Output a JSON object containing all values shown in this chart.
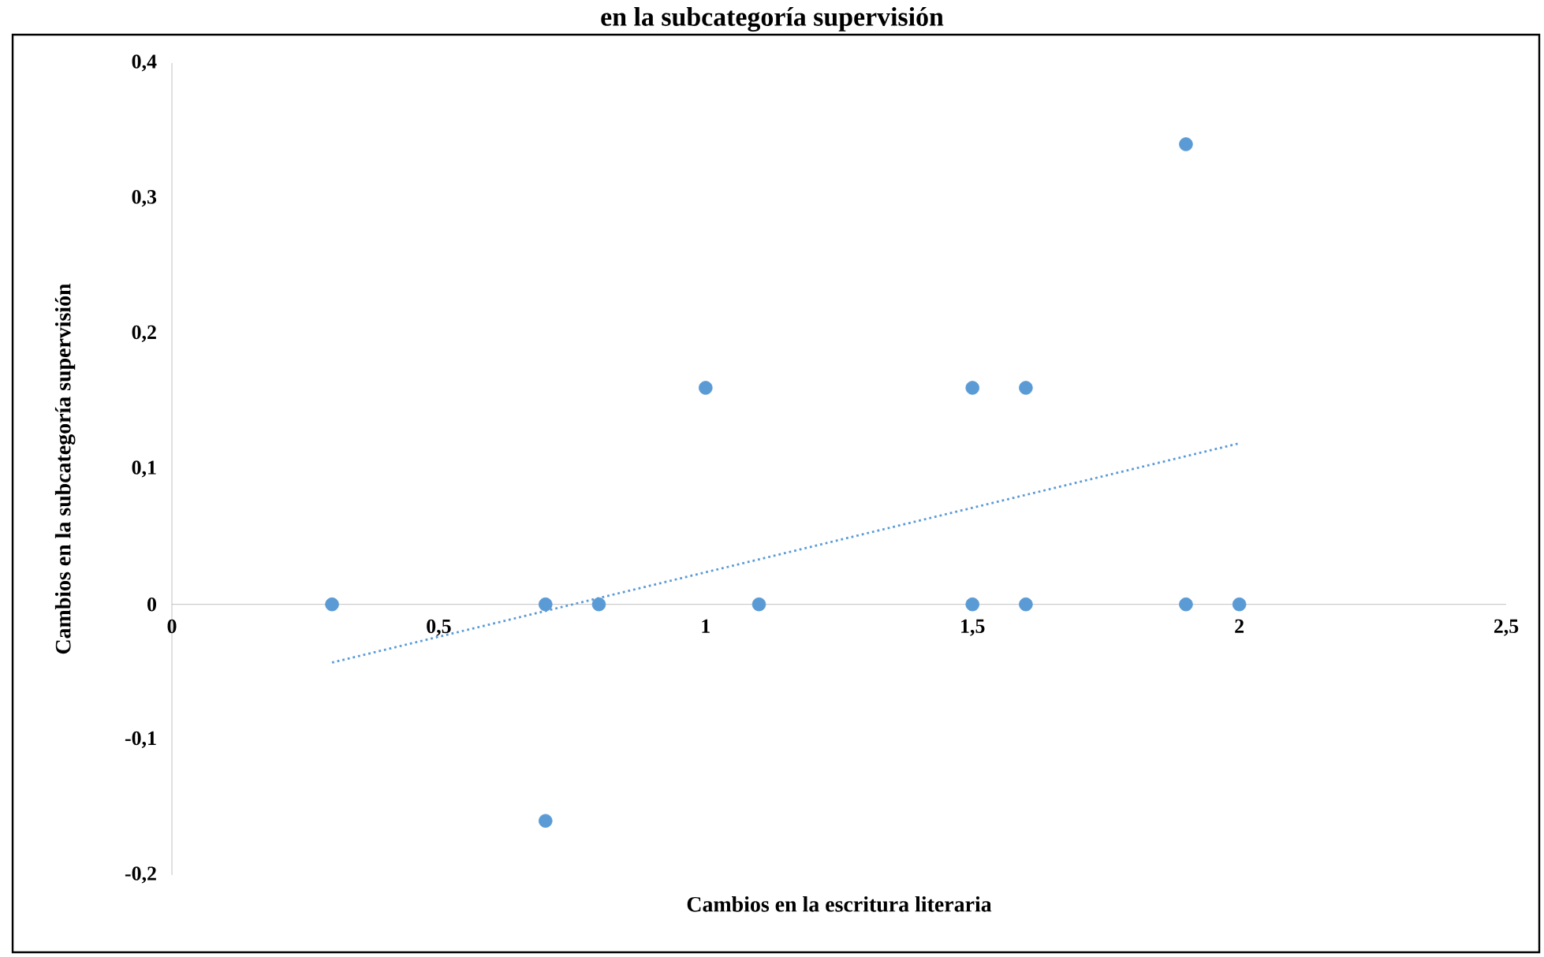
{
  "chart_data": {
    "type": "scatter",
    "title": "en la subcategoría supervisión",
    "xlabel": "Cambios en la escritura literaria",
    "ylabel": "Cambios en la subcategoría supervisión",
    "xlim": [
      0,
      2.5
    ],
    "ylim": [
      -0.2,
      0.4
    ],
    "xticks": [
      0,
      {
        "value": 0.5,
        "label": "0,5"
      },
      1,
      {
        "value": 1.5,
        "label": "1,5"
      },
      2,
      {
        "value": 2.5,
        "label": "2,5"
      }
    ],
    "yticks": [
      {
        "value": -0.2,
        "label": "-0,2"
      },
      {
        "value": -0.1,
        "label": "-0,1"
      },
      0,
      {
        "value": 0.1,
        "label": "0,1"
      },
      {
        "value": 0.2,
        "label": "0,2"
      },
      {
        "value": 0.3,
        "label": "0,3"
      },
      {
        "value": 0.4,
        "label": "0,4"
      }
    ],
    "grid": false,
    "series": [
      {
        "color": "#5b9bd5",
        "marker": "circle",
        "x": [
          0.3,
          0.7,
          0.7,
          0.8,
          1,
          1.1,
          1.5,
          1.5,
          1.6,
          1.6,
          1.9,
          1.9,
          2
        ],
        "values": [
          0,
          0,
          -0.16,
          0,
          0.16,
          0,
          0.16,
          0,
          0.16,
          0,
          0.34,
          0,
          0
        ]
      },
      {
        "type": "line",
        "color": "#5b9bd5",
        "line_style": "dotted",
        "marker": "none",
        "x": [
          0.3,
          2
        ],
        "values": [
          -0.043,
          0.119
        ]
      }
    ]
  }
}
